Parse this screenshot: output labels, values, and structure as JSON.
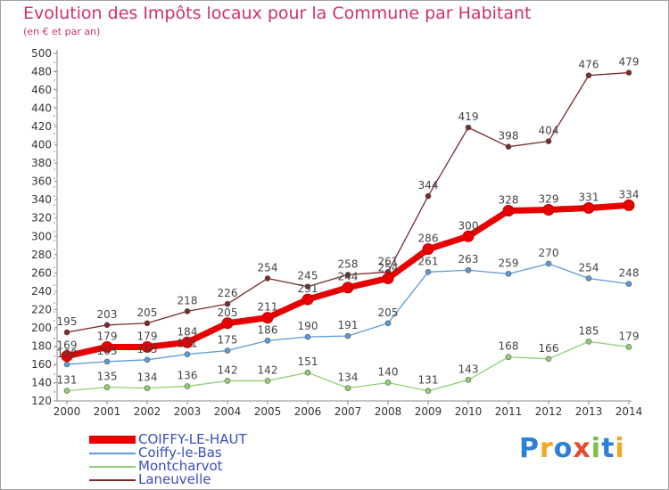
{
  "header": {
    "title": "Evolution des Impôts locaux pour la Commune par Habitant",
    "subtitle": "(en € et par an)"
  },
  "logo": {
    "text": "Proxiti",
    "letters": [
      {
        "ch": "P",
        "color": "#2e7fd6"
      },
      {
        "ch": "r",
        "color": "#f5a623"
      },
      {
        "ch": "o",
        "color": "#2e7fd6"
      },
      {
        "ch": "x",
        "color": "#e84b2b"
      },
      {
        "ch": "i",
        "color": "#7bc043"
      },
      {
        "ch": "t",
        "color": "#2e7fd6"
      },
      {
        "ch": "i",
        "color": "#f5a623"
      }
    ]
  },
  "chart_data": {
    "type": "line",
    "title": "Evolution des Impôts locaux pour la Commune par Habitant",
    "subtitle": "(en € et par an)",
    "xlabel": "",
    "ylabel": "",
    "x": [
      "2000",
      "2001",
      "2002",
      "2003",
      "2004",
      "2005",
      "2006",
      "2007",
      "2008",
      "2009",
      "2010",
      "2011",
      "2012",
      "2013",
      "2014"
    ],
    "ylim": [
      120,
      500
    ],
    "ytick_step": 20,
    "grid": false,
    "legend": "bottom-left",
    "series": [
      {
        "name": "COIFFY-LE-HAUT",
        "color": "#e80000",
        "values": [
          169,
          179,
          179,
          184,
          205,
          211,
          231,
          244,
          254,
          286,
          300,
          328,
          329,
          331,
          334
        ],
        "labels": [
          "169",
          "179",
          "179",
          "184",
          "205",
          "211",
          "231",
          "244",
          "254",
          "286",
          "300",
          "328",
          "329",
          "331",
          "334"
        ]
      },
      {
        "name": "Coiffy-le-Bas",
        "color": "#5b9bd5",
        "values": [
          160,
          163,
          165,
          171,
          175,
          186,
          190,
          191,
          205,
          261,
          263,
          259,
          270,
          254,
          248
        ],
        "labels": [
          "160",
          "163",
          "165",
          "171",
          "175",
          "186",
          "190",
          "191",
          "205",
          "261",
          "263",
          "259",
          "270",
          "254",
          "248"
        ]
      },
      {
        "name": "Montcharvot",
        "color": "#90d070",
        "values": [
          131,
          135,
          134,
          136,
          142,
          142,
          151,
          134,
          140,
          131,
          143,
          168,
          166,
          185,
          179
        ],
        "labels": [
          "131",
          "135",
          "134",
          "136",
          "142",
          "142",
          "151",
          "134",
          "140",
          "131",
          "143",
          "168",
          "166",
          "185",
          "179"
        ]
      },
      {
        "name": "Laneuvelle",
        "color": "#7a2a2a",
        "values": [
          195,
          203,
          205,
          218,
          226,
          254,
          245,
          258,
          261,
          344,
          419,
          398,
          404,
          476,
          479
        ],
        "labels": [
          "195",
          "203",
          "205",
          "218",
          "226",
          "254",
          "245",
          "258",
          "261",
          "344",
          "419",
          "398",
          "404",
          "476",
          "479"
        ]
      }
    ]
  }
}
